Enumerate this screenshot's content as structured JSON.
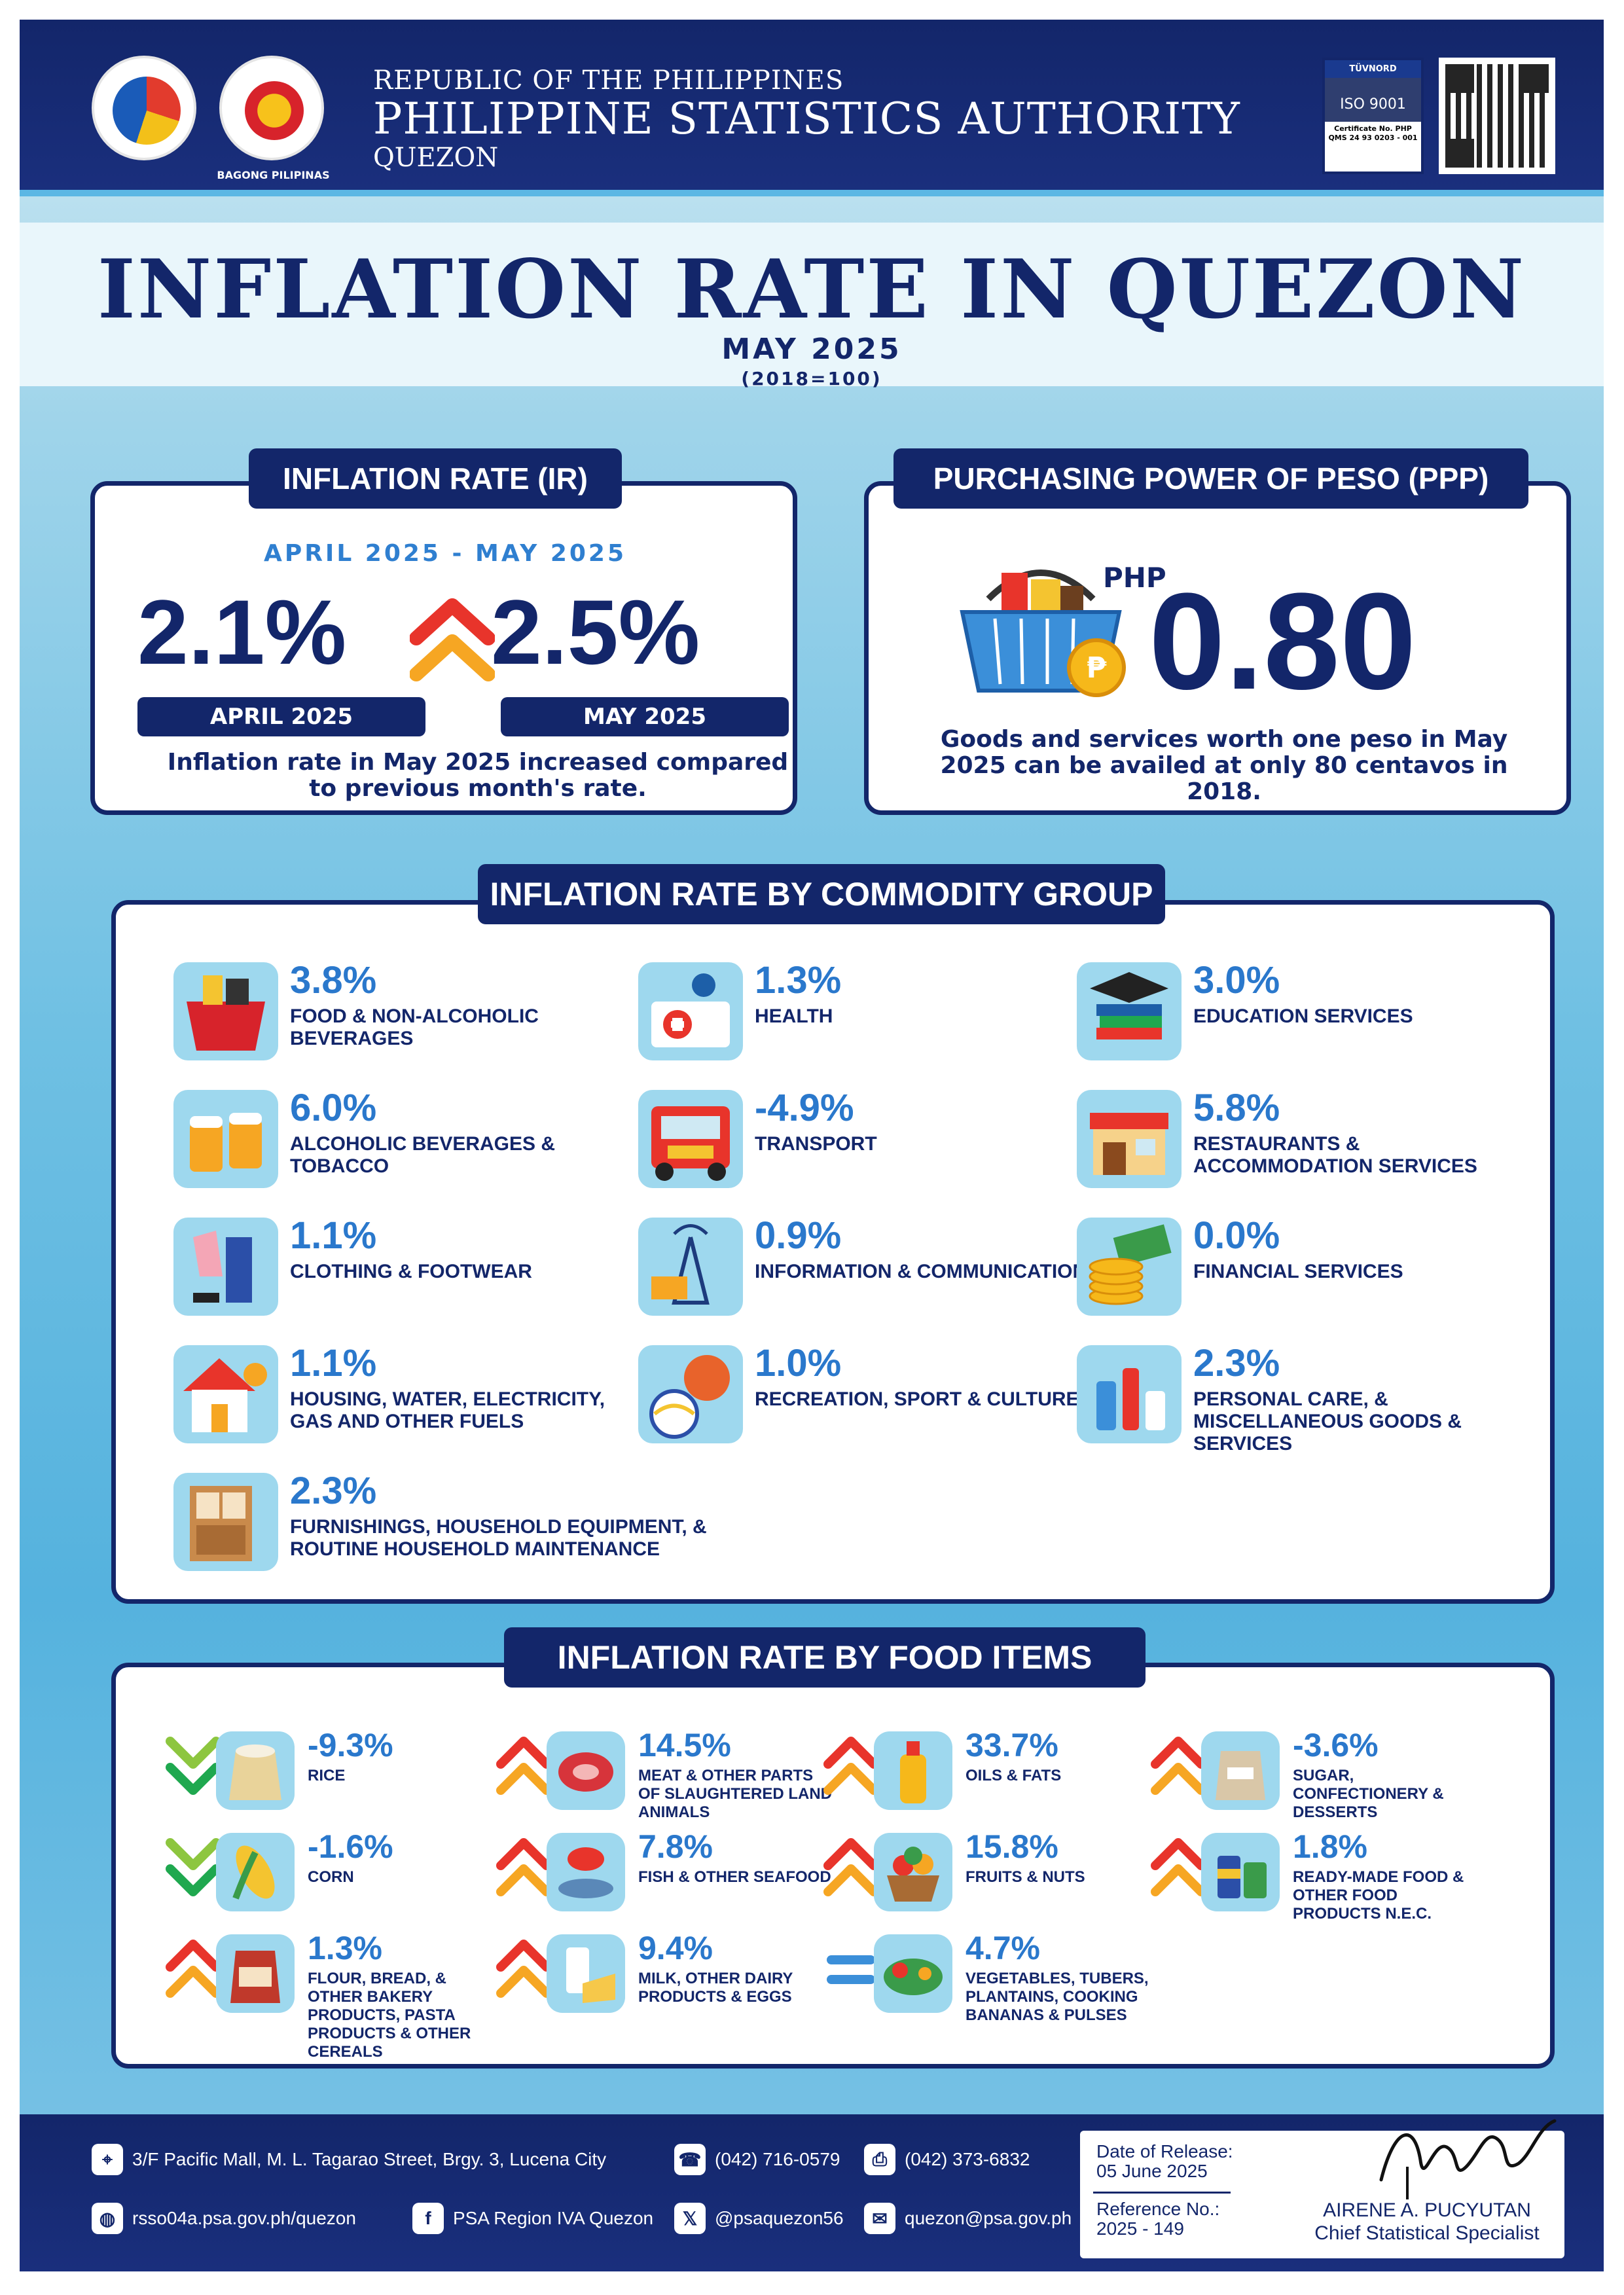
{
  "header": {
    "republic": "REPUBLIC OF THE PHILIPPINES",
    "agency": "PHILIPPINE STATISTICS AUTHORITY",
    "office": "QUEZON",
    "bagong_pilipinas": "BAGONG PILIPINAS",
    "psa_logo_text": "PHILIPPINE STATISTICS AUTHORITY",
    "iso": {
      "brand": "TÜVNORD",
      "standard": "ISO 9001",
      "certificate": "Certificate No. PHP QMS 24 93 0203 - 001"
    }
  },
  "title": {
    "main": "INFLATION RATE IN QUEZON",
    "month": "MAY 2025",
    "base": "(2018=100)"
  },
  "inflation_rate": {
    "label": "INFLATION RATE (IR)",
    "period": "APRIL 2025 -  MAY 2025",
    "april_value": "2.1%",
    "may_value": "2.5%",
    "april_label": "APRIL 2025",
    "may_label": "MAY 2025",
    "note": "Inflation rate in May 2025 increased compared to previous month's rate."
  },
  "purchasing_power": {
    "label": "PURCHASING POWER OF PESO (PPP)",
    "currency": "PHP",
    "value": "0.80",
    "note": "Goods and services worth one peso in May 2025 can be availed at only 80 centavos in 2018."
  },
  "commodity_groups": {
    "label": "INFLATION RATE  BY COMMODITY GROUP",
    "items": [
      {
        "value": "3.8%",
        "name": "FOOD & NON-ALCOHOLIC BEVERAGES",
        "icon": "grocery-basket-icon"
      },
      {
        "value": "1.3%",
        "name": "HEALTH",
        "icon": "health-icon"
      },
      {
        "value": "3.0%",
        "name": "EDUCATION SERVICES",
        "icon": "graduation-icon"
      },
      {
        "value": "6.0%",
        "name": "ALCOHOLIC BEVERAGES & TOBACCO",
        "icon": "beer-mugs-icon"
      },
      {
        "value": "-4.9%",
        "name": "TRANSPORT",
        "icon": "jeepney-icon"
      },
      {
        "value": "5.8%",
        "name": "RESTAURANTS & ACCOMMODATION SERVICES",
        "icon": "restaurant-icon"
      },
      {
        "value": "1.1%",
        "name": "CLOTHING & FOOTWEAR",
        "icon": "clothing-icon"
      },
      {
        "value": "0.9%",
        "name": "INFORMATION & COMMUNICATION",
        "icon": "communication-tower-icon"
      },
      {
        "value": "0.0%",
        "name": "FINANCIAL SERVICES",
        "icon": "money-icon"
      },
      {
        "value": "1.1%",
        "name": "HOUSING, WATER, ELECTRICITY, GAS AND OTHER FUELS",
        "icon": "house-icon"
      },
      {
        "value": "1.0%",
        "name": "RECREATION, SPORT & CULTURE",
        "icon": "sports-balls-icon"
      },
      {
        "value": "2.3%",
        "name": "PERSONAL CARE, & MISCELLANEOUS GOODS & SERVICES",
        "icon": "personal-care-icon"
      },
      {
        "value": "2.3%",
        "name": "FURNISHINGS, HOUSEHOLD EQUIPMENT, & ROUTINE HOUSEHOLD MAINTENANCE",
        "icon": "furniture-icon"
      }
    ]
  },
  "food_items": {
    "label": "INFLATION RATE BY FOOD ITEMS",
    "items": [
      {
        "value": "-9.3%",
        "name": "RICE",
        "trend": "down",
        "icon": "rice-sack-icon"
      },
      {
        "value": "14.5%",
        "name": "MEAT & OTHER PARTS OF SLAUGHTERED LAND ANIMALS",
        "trend": "up",
        "icon": "meat-icon"
      },
      {
        "value": "33.7%",
        "name": "OILS & FATS",
        "trend": "up",
        "icon": "oil-bottle-icon"
      },
      {
        "value": "-3.6%",
        "name": "SUGAR, CONFECTIONERY & DESSERTS",
        "trend": "up",
        "icon": "sugar-icon"
      },
      {
        "value": "-1.6%",
        "name": "CORN",
        "trend": "down",
        "icon": "corn-icon"
      },
      {
        "value": "7.8%",
        "name": "FISH & OTHER SEAFOOD",
        "trend": "up",
        "icon": "seafood-icon"
      },
      {
        "value": "15.8%",
        "name": "FRUITS & NUTS",
        "trend": "up",
        "icon": "fruit-basket-icon"
      },
      {
        "value": "1.8%",
        "name": "READY-MADE FOOD & OTHER FOOD PRODUCTS N.E.C.",
        "trend": "up",
        "icon": "canned-food-icon"
      },
      {
        "value": "1.3%",
        "name": "FLOUR, BREAD, & OTHER BAKERY PRODUCTS, PASTA PRODUCTS & OTHER CEREALS",
        "trend": "up",
        "icon": "flour-sack-icon"
      },
      {
        "value": "9.4%",
        "name": "MILK, OTHER DAIRY PRODUCTS & EGGS",
        "trend": "up",
        "icon": "dairy-icon"
      },
      {
        "value": "4.7%",
        "name": "VEGETABLES, TUBERS, PLANTAINS, COOKING BANANAS & PULSES",
        "trend": "equal",
        "icon": "vegetables-icon"
      }
    ]
  },
  "footer": {
    "address": "3/F Pacific Mall, M. L. Tagarao Street, Brgy. 3, Lucena City",
    "phone": "(042) 716-0579",
    "fax": "(042) 373-6832",
    "website": "rsso04a.psa.gov.ph/quezon",
    "facebook": "PSA Region IVA Quezon",
    "twitter": "@psaquezon56",
    "email": "quezon@psa.gov.ph",
    "release_label": "Date of Release:",
    "release_date": "05 June 2025",
    "reference_label": "Reference No.:",
    "reference_no": "2025 - 149",
    "signatory_name": "AIRENE A. PUCYUTAN",
    "signatory_title": "Chief Statistical Specialist"
  },
  "colors": {
    "navy": "#13266a",
    "accent_blue": "#2a78cc",
    "up_arrow": [
      "#e8342b",
      "#f6a623"
    ],
    "down_arrow": [
      "#1fa84f",
      "#8dc63f"
    ],
    "equal": "#3b8fd9"
  }
}
